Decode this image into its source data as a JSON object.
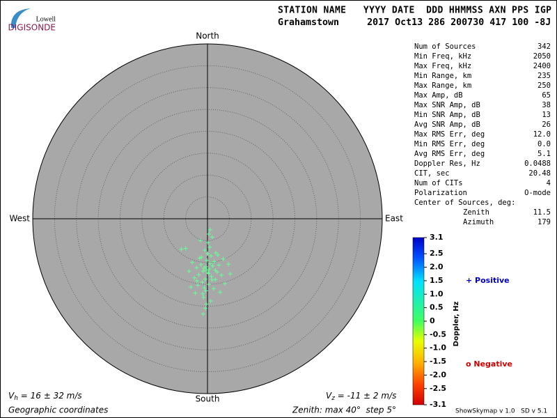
{
  "logo": {
    "top": "Lowell",
    "bottom": "DIGISONDE"
  },
  "header": {
    "labels": "STATION NAME   YYYY DATE  DDD HHMMSS AXN PPS IGP",
    "values": "Grahamstown     2017 Oct13 286 200730 417 100 -8J"
  },
  "stats": [
    [
      "Num of Sources",
      "342"
    ],
    [
      "Min Freq, kHz",
      "2050"
    ],
    [
      "Max Freq, kHz",
      "2400"
    ],
    [
      "Min Range, km",
      "235"
    ],
    [
      "Max Range, km",
      "250"
    ],
    [
      "Max Amp, dB",
      "65"
    ],
    [
      "Max SNR Amp, dB",
      "38"
    ],
    [
      "Min SNR Amp, dB",
      "13"
    ],
    [
      "Avg SNR Amp, dB",
      "26"
    ],
    [
      "Max RMS Err, deg",
      "12.0"
    ],
    [
      "Min RMS Err, deg",
      "0.0"
    ],
    [
      "Avg RMS Err, deg",
      "5.1"
    ],
    [
      "Doppler Res, Hz",
      "0.0488"
    ],
    [
      "CIT, sec",
      "20.48"
    ],
    [
      "Num of CITs",
      "4"
    ],
    [
      "Polarization",
      "O-mode"
    ]
  ],
  "center": {
    "title": "Center of Sources, deg:",
    "rows": [
      [
        "Zenith",
        "11.5"
      ],
      [
        "Azimuth",
        "179"
      ]
    ]
  },
  "legend": {
    "positive": "+ Positive",
    "negative": "o Negative"
  },
  "vh": {
    "symbol": "V",
    "sub": "h",
    "text": " = 16 ± 32 m/s"
  },
  "vz": {
    "symbol": "V",
    "sub": "z",
    "text": " = -11 ± 2 m/s"
  },
  "footer": {
    "coords": "Geographic coordinates",
    "zenith": "Zenith: max 40°  step 5°",
    "version": "ShowSkymap v 1.0   SD v 5.1"
  },
  "chart_data": {
    "type": "skymap",
    "directions": {
      "north": "North",
      "south": "South",
      "west": "West",
      "east": "East"
    },
    "zenith_max": 40,
    "zenith_step": 5,
    "color": "#66ff99",
    "x": [
      -0.3,
      0.4,
      -1.0,
      1.2,
      -0.8,
      0.2,
      -1.5,
      1.8,
      -2.0,
      0.9,
      -0.5,
      0.6,
      -1.2,
      1.5,
      -2.5,
      2.2,
      -0.1,
      0.3,
      -0.7,
      1.0,
      -1.8,
      2.6,
      -3.0,
      3.2,
      -0.4,
      0.8,
      -1.1,
      1.4,
      -2.2,
      0.0,
      -0.6,
      0.5,
      -1.4,
      1.9,
      -3.5,
      3.6,
      -4.2,
      4.0,
      -5.0,
      4.8,
      -6.0,
      5.2,
      -0.9,
      0.7,
      -2.8,
      2.9,
      -0.2,
      0.1,
      -1.6,
      1.1,
      -0.5,
      0.3,
      -1.0,
      0.6,
      1.8,
      -2.4,
      2.4,
      -3.8,
      -0.2,
      0.1
    ],
    "y": [
      -11.0,
      -11.5,
      -12.0,
      -10.8,
      -11.3,
      -12.5,
      -10.5,
      -11.8,
      -12.8,
      -13.2,
      -13.8,
      -10.2,
      -14.5,
      -9.8,
      -11.2,
      -12.2,
      -9.5,
      -15.0,
      -15.8,
      -14.0,
      -9.0,
      -10.6,
      -13.5,
      -12.9,
      -16.5,
      -8.5,
      -17.2,
      -16.0,
      -15.2,
      -8.0,
      -7.2,
      -6.5,
      -8.8,
      -7.8,
      -10.0,
      -9.2,
      -12.0,
      -14.8,
      -6.8,
      -10.4,
      -7.0,
      -12.6,
      -18.0,
      -18.8,
      -17.0,
      -16.8,
      -19.5,
      -5.5,
      -5.0,
      -4.2,
      -20.5,
      -3.5,
      -21.8,
      -2.5,
      -13.9,
      -14.2,
      -8.3,
      -15.6,
      -11.8,
      -12.3
    ],
    "colorbar": {
      "label": "Doppler, Hz",
      "lim": [
        -3.1,
        3.1
      ],
      "ticks": [
        3.1,
        2.5,
        {
          "value": 2,
          "label": "2.0"
        },
        1.5,
        {
          "value": 1,
          "label": "1.0"
        },
        0.5,
        0,
        -0.5,
        {
          "value": -1,
          "label": "-1.0"
        },
        -1.5,
        {
          "value": -2,
          "label": "-2.0"
        },
        -2.5,
        -3.1
      ]
    }
  }
}
